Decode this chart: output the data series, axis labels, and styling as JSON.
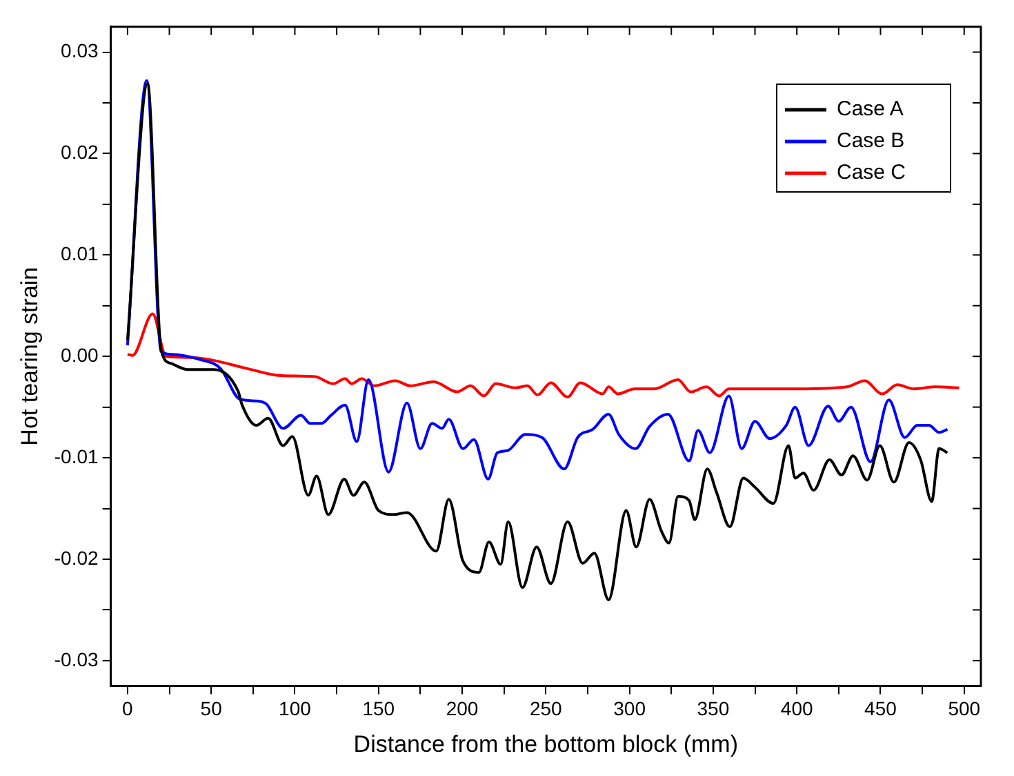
{
  "chart_data": {
    "type": "line",
    "xlabel": "Distance from the bottom block (mm)",
    "ylabel": "Hot tearing strain",
    "xlim": [
      -10,
      510
    ],
    "ylim": [
      -0.0325,
      0.0325
    ],
    "xticks": [
      0,
      {
        "value": 25,
        "label": null
      },
      50,
      {
        "value": 75,
        "label": null
      },
      100,
      {
        "value": 125,
        "label": null
      },
      150,
      {
        "value": 175,
        "label": null
      },
      200,
      {
        "value": 225,
        "label": null
      },
      250,
      {
        "value": 275,
        "label": null
      },
      300,
      {
        "value": 325,
        "label": null
      },
      350,
      {
        "value": 375,
        "label": null
      },
      400,
      {
        "value": 425,
        "label": null
      },
      450,
      {
        "value": 475,
        "label": null
      },
      500
    ],
    "yticks": [
      -0.03,
      {
        "value": -0.025,
        "label": null
      },
      -0.02,
      {
        "value": -0.015,
        "label": null
      },
      -0.01,
      {
        "value": -0.005,
        "label": null
      },
      {
        "value": 0,
        "label": "0.00"
      },
      {
        "value": 0.005,
        "label": null
      },
      0.01,
      {
        "value": 0.015,
        "label": null
      },
      0.02,
      {
        "value": 0.025,
        "label": null
      },
      0.03
    ],
    "grid": false,
    "legend": "top right",
    "marker": "none",
    "line_style": "solid",
    "series": [
      {
        "name": "Case A",
        "color": "#000000",
        "x": [
          0,
          12,
          20,
          26,
          36,
          51.5,
          66,
          68.5,
          77,
          84,
          93,
          98.5,
          108,
          113,
          120,
          129.5,
          135,
          141.5,
          150,
          159,
          167,
          184.5,
          192,
          200.5,
          210,
          216,
          223,
          227.5,
          236,
          244.5,
          253,
          263,
          272,
          279,
          287.5,
          298,
          304,
          312,
          319,
          323.6,
          329,
          335.6,
          339,
          346.5,
          352,
          360,
          368,
          375,
          386,
          395,
          399,
          404,
          410,
          419.5,
          426.7,
          433.6,
          442,
          449.6,
          458,
          467,
          474,
          480.6,
          485,
          490
        ],
        "values": [
          0.0016,
          0.0269,
          0.0007,
          -0.0007,
          -0.0013,
          -0.0013,
          -0.0034,
          -0.0048,
          -0.0068,
          -0.0061,
          -0.0088,
          -0.0079,
          -0.0137,
          -0.0118,
          -0.0156,
          -0.0121,
          -0.0137,
          -0.0124,
          -0.0152,
          -0.0156,
          -0.0154,
          -0.0192,
          -0.0141,
          -0.0202,
          -0.0213,
          -0.0183,
          -0.0205,
          -0.0163,
          -0.0228,
          -0.0188,
          -0.0224,
          -0.0163,
          -0.0204,
          -0.0194,
          -0.024,
          -0.0152,
          -0.0188,
          -0.0141,
          -0.0172,
          -0.0184,
          -0.0138,
          -0.0142,
          -0.0161,
          -0.0111,
          -0.0134,
          -0.0168,
          -0.012,
          -0.0129,
          -0.0145,
          -0.0088,
          -0.012,
          -0.0115,
          -0.0132,
          -0.0102,
          -0.0117,
          -0.0098,
          -0.0122,
          -0.0088,
          -0.0124,
          -0.0085,
          -0.0102,
          -0.0143,
          -0.0091,
          -0.0095
        ]
      },
      {
        "name": "Case B",
        "color": "#0000ff",
        "x": [
          0,
          11.5,
          20,
          26,
          43,
          55.6,
          67,
          77,
          83,
          93,
          103.7,
          109,
          116,
          121.7,
          130,
          137,
          144,
          156,
          167,
          175,
          182,
          188,
          192,
          200.5,
          207,
          215.5,
          221,
          227,
          237.7,
          247.7,
          261,
          269,
          278,
          287.5,
          293.6,
          303.6,
          312,
          323,
          335.6,
          341,
          348,
          359.4,
          367,
          375,
          383.7,
          393.7,
          399,
          407,
          418.7,
          425,
          432.4,
          444,
          455,
          464.5,
          472,
          479,
          485,
          490
        ],
        "values": [
          0.0011,
          0.0272,
          0.0005,
          0.0002,
          -0.0003,
          -0.0012,
          -0.0042,
          -0.0044,
          -0.0047,
          -0.0071,
          -0.0058,
          -0.0066,
          -0.0066,
          -0.0058,
          -0.0048,
          -0.0084,
          -0.0023,
          -0.0114,
          -0.0046,
          -0.0091,
          -0.0066,
          -0.0071,
          -0.0062,
          -0.0091,
          -0.0082,
          -0.0121,
          -0.0095,
          -0.0093,
          -0.0077,
          -0.008,
          -0.0111,
          -0.008,
          -0.0072,
          -0.0057,
          -0.0077,
          -0.0091,
          -0.0069,
          -0.0057,
          -0.0103,
          -0.0073,
          -0.0095,
          -0.0039,
          -0.0091,
          -0.0064,
          -0.0081,
          -0.0068,
          -0.005,
          -0.0088,
          -0.0049,
          -0.0064,
          -0.005,
          -0.0104,
          -0.0043,
          -0.008,
          -0.0068,
          -0.0068,
          -0.0075,
          -0.0072
        ]
      },
      {
        "name": "Case C",
        "color": "#ff0000",
        "x": [
          0,
          3,
          15,
          23,
          37,
          48.7,
          71.6,
          91.6,
          112,
          123,
          130,
          134,
          140,
          147.5,
          160,
          169,
          183,
          197,
          205,
          213,
          220,
          232,
          239,
          245,
          253,
          263,
          270.6,
          284,
          287.5,
          293,
          303,
          315,
          329,
          336.6,
          346,
          353.6,
          359.4,
          378,
          401,
          430,
          440.6,
          451,
          460,
          470,
          483,
          497
        ],
        "values": [
          0.0002,
          0.0001,
          0.0042,
          0.0,
          -0.0001,
          -0.0003,
          -0.0012,
          -0.0019,
          -0.002,
          -0.0027,
          -0.0022,
          -0.0027,
          -0.0022,
          -0.0029,
          -0.0024,
          -0.0029,
          -0.0025,
          -0.0035,
          -0.0029,
          -0.0039,
          -0.0027,
          -0.0031,
          -0.0029,
          -0.0038,
          -0.0026,
          -0.004,
          -0.0026,
          -0.0037,
          -0.003,
          -0.0037,
          -0.0032,
          -0.0032,
          -0.0023,
          -0.0035,
          -0.003,
          -0.0039,
          -0.0032,
          -0.0032,
          -0.0032,
          -0.003,
          -0.0024,
          -0.0037,
          -0.0028,
          -0.0032,
          -0.003,
          -0.0031
        ]
      }
    ]
  }
}
